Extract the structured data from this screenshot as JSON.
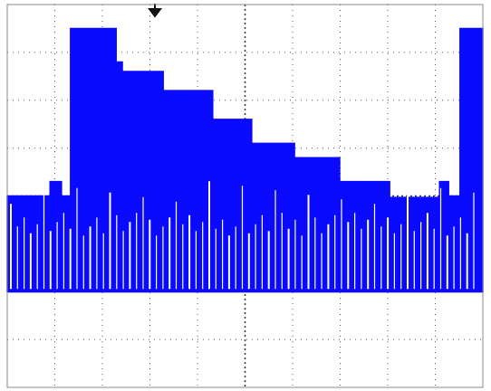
{
  "chart_data": {
    "type": "area",
    "color": "#0a0aff",
    "x": [
      0,
      0.9,
      0.9,
      1.14,
      1.14,
      1.33,
      1.33,
      2.29,
      2.29,
      2.42,
      2.42,
      3.28,
      3.28,
      4.32,
      4.32,
      5.14,
      5.14,
      6.04,
      6.04,
      6.99,
      6.99,
      8.04,
      8.04,
      9.09,
      9.09,
      9.28,
      9.28,
      9.52,
      9.52,
      10
    ],
    "values": [
      4.0,
      4.0,
      4.3,
      4.3,
      4.0,
      4.0,
      7.5,
      7.5,
      6.8,
      6.8,
      6.6,
      6.6,
      6.2,
      6.2,
      5.6,
      5.6,
      5.1,
      5.1,
      4.8,
      4.8,
      4.3,
      4.3,
      3.97,
      3.97,
      4.3,
      4.3,
      4.0,
      4.0,
      7.5,
      7.5
    ],
    "base": 2.0,
    "xlim": [
      0,
      10
    ],
    "ylim": [
      0,
      8
    ],
    "xticks": [
      0,
      1,
      2,
      3,
      4,
      5,
      6,
      7,
      8,
      9,
      10
    ],
    "yticks": [
      0,
      1,
      2,
      3,
      4,
      5,
      6,
      7,
      8
    ],
    "grid": true
  }
}
